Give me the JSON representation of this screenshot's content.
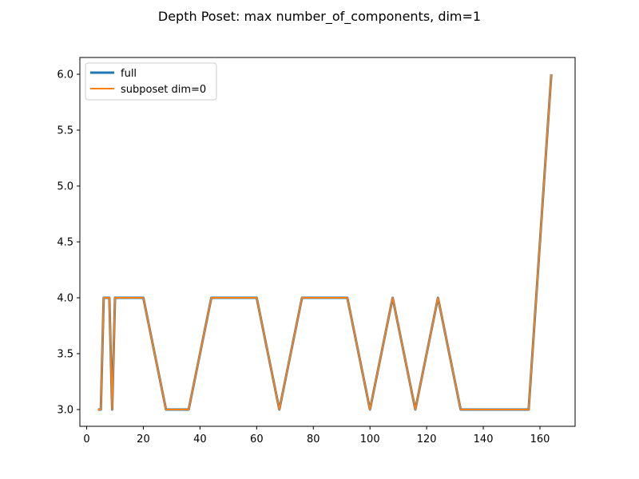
{
  "chart_data": {
    "type": "line",
    "title": "Depth Poset: max number_of_components, dim=1",
    "xlabel": "",
    "ylabel": "",
    "xlim": [
      -2.4,
      172.4
    ],
    "ylim": [
      2.85,
      6.15
    ],
    "x_ticks": [
      0,
      20,
      40,
      60,
      80,
      100,
      120,
      140,
      160
    ],
    "y_ticks": [
      3.0,
      3.5,
      4.0,
      4.5,
      5.0,
      5.5,
      6.0
    ],
    "x_tick_labels": [
      "0",
      "20",
      "40",
      "60",
      "80",
      "100",
      "120",
      "140",
      "160"
    ],
    "y_tick_labels": [
      "3.0",
      "3.5",
      "4.0",
      "4.5",
      "5.0",
      "5.5",
      "6.0"
    ],
    "grid": false,
    "legend_position": "top-left",
    "series": [
      {
        "name": "full",
        "color": "#1f77b4",
        "line_width": "thick",
        "x": [
          4,
          5,
          6,
          7,
          8,
          9,
          10,
          12,
          16,
          20,
          28,
          32,
          36,
          44,
          52,
          60,
          68,
          76,
          84,
          92,
          100,
          108,
          116,
          124,
          132,
          140,
          148,
          156,
          164
        ],
        "y": [
          3,
          3,
          4,
          4,
          4,
          3,
          4,
          4,
          4,
          4,
          3,
          3,
          3,
          4,
          4,
          4,
          3,
          4,
          4,
          4,
          3,
          4,
          3,
          4,
          3,
          3,
          3,
          3,
          6
        ]
      },
      {
        "name": "subposet dim=0",
        "color": "#ff7f0e",
        "line_width": "normal",
        "x": [
          4,
          5,
          6,
          7,
          8,
          9,
          10,
          12,
          16,
          20,
          28,
          32,
          36,
          44,
          52,
          60,
          68,
          76,
          84,
          92,
          100,
          108,
          116,
          124,
          132,
          140,
          148,
          156,
          164
        ],
        "y": [
          3,
          3,
          4,
          4,
          4,
          3,
          4,
          4,
          4,
          4,
          3,
          3,
          3,
          4,
          4,
          4,
          3,
          4,
          4,
          4,
          3,
          4,
          3,
          4,
          3,
          3,
          3,
          3,
          6
        ]
      }
    ]
  }
}
